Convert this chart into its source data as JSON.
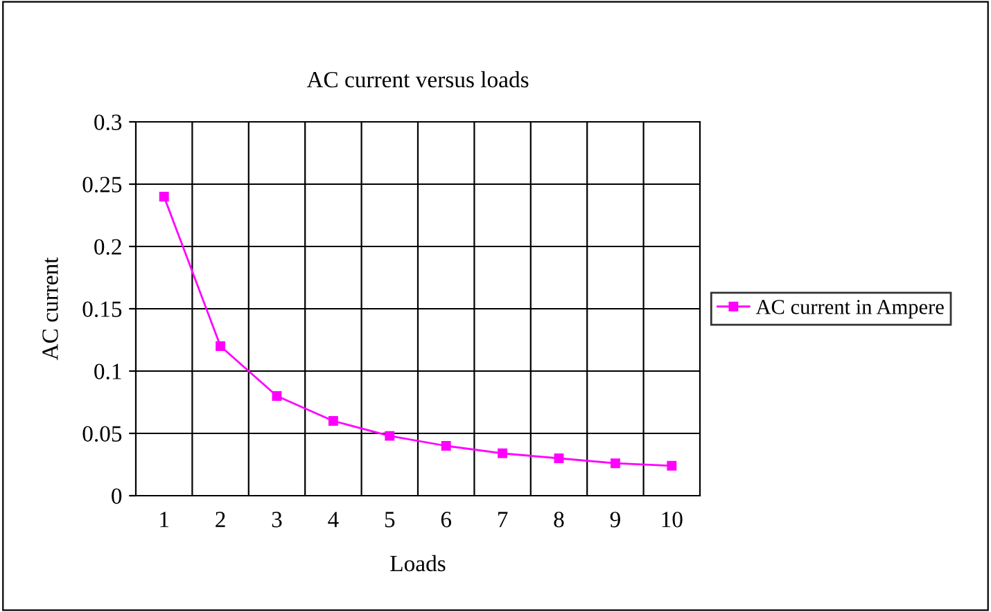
{
  "chart_data": {
    "type": "line",
    "title": "AC current versus loads",
    "xlabel": "Loads",
    "ylabel": "AC current",
    "categories": [
      "1",
      "2",
      "3",
      "4",
      "5",
      "6",
      "7",
      "8",
      "9",
      "10"
    ],
    "series": [
      {
        "name": "AC current in Ampere",
        "color": "#ff00ff",
        "values": [
          0.24,
          0.12,
          0.08,
          0.06,
          0.048,
          0.04,
          0.034,
          0.03,
          0.026,
          0.024
        ]
      }
    ],
    "ylim": [
      0,
      0.3
    ],
    "yticks": [
      0,
      0.05,
      0.1,
      0.15,
      0.2,
      0.25,
      0.3
    ],
    "grid": true,
    "legend": "right",
    "marker": "square",
    "line_style": "solid"
  }
}
